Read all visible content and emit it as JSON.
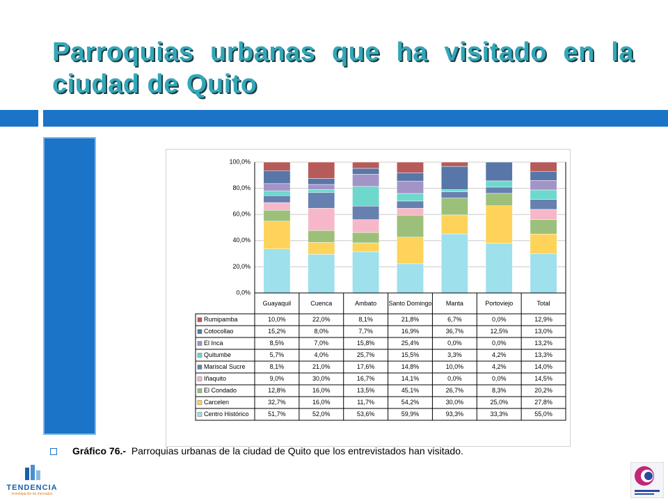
{
  "title": "Parroquias urbanas que ha visitado en la ciudad de Quito",
  "chart_data": {
    "type": "stacked_bar_100",
    "categories": [
      "Guayaquil",
      "Cuenca",
      "Ambato",
      "Santo Domingo",
      "Manta",
      "Portoviejo",
      "Total"
    ],
    "ylim": [
      0,
      100
    ],
    "yticks": [
      {
        "value": 0,
        "label": "0,0%"
      },
      {
        "value": 20,
        "label": "20,0%"
      },
      {
        "value": 40,
        "label": "40,0%"
      },
      {
        "value": 60,
        "label": "60,0%"
      },
      {
        "value": 80,
        "label": "80,0%"
      },
      {
        "value": 100,
        "label": "100,0%"
      }
    ],
    "grid": true,
    "series": [
      {
        "name": "Rumipamba",
        "color": "#b75a5a",
        "values": [
          10.0,
          22.0,
          8.1,
          21.8,
          6.7,
          0.0,
          12.9
        ],
        "value_labels": [
          "10,0%",
          "22,0%",
          "8,1%",
          "21,8%",
          "6,7%",
          "0,0%",
          "12,9%"
        ]
      },
      {
        "name": "Cotocollao",
        "color": "#5876a8",
        "values": [
          15.2,
          8.0,
          7.7,
          16.9,
          36.7,
          12.5,
          13.0
        ],
        "value_labels": [
          "15,2%",
          "8,0%",
          "7,7%",
          "16,9%",
          "36,7%",
          "12,5%",
          "13,0%"
        ]
      },
      {
        "name": "El Inca",
        "color": "#a394c8",
        "values": [
          8.5,
          7.0,
          15.8,
          25.4,
          0.0,
          0.0,
          13.2
        ],
        "value_labels": [
          "8,5%",
          "7,0%",
          "15,8%",
          "25,4%",
          "0,0%",
          "0,0%",
          "13,2%"
        ]
      },
      {
        "name": "Quitumbe",
        "color": "#6ed8cc",
        "values": [
          5.7,
          4.0,
          25.7,
          15.5,
          3.3,
          4.2,
          13.3
        ],
        "value_labels": [
          "5,7%",
          "4,0%",
          "25,7%",
          "15,5%",
          "3,3%",
          "4,2%",
          "13,3%"
        ]
      },
      {
        "name": "Mariscal Sucre",
        "color": "#6680b0",
        "values": [
          8.1,
          21.0,
          17.6,
          14.8,
          10.0,
          4.2,
          14.0
        ],
        "value_labels": [
          "8,1%",
          "21,0%",
          "17,6%",
          "14,8%",
          "10,0%",
          "4,2%",
          "14,0%"
        ]
      },
      {
        "name": "Iñaquito",
        "color": "#f6b8c8",
        "values": [
          9.0,
          30.0,
          16.7,
          14.1,
          0.0,
          0.0,
          14.5
        ],
        "value_labels": [
          "9,0%",
          "30,0%",
          "16,7%",
          "14,1%",
          "0,0%",
          "0,0%",
          "14,5%"
        ]
      },
      {
        "name": "El Condado",
        "color": "#9cc07a",
        "values": [
          12.8,
          16.0,
          13.5,
          45.1,
          26.7,
          8.3,
          20.2
        ],
        "value_labels": [
          "12,8%",
          "16,0%",
          "13,5%",
          "45,1%",
          "26,7%",
          "8,3%",
          "20,2%"
        ]
      },
      {
        "name": "Carcelen",
        "color": "#fdd35a",
        "values": [
          32.7,
          16.0,
          11.7,
          54.2,
          30.0,
          25.0,
          27.8
        ],
        "value_labels": [
          "32,7%",
          "16,0%",
          "11,7%",
          "54,2%",
          "30,0%",
          "25,0%",
          "27,8%"
        ]
      },
      {
        "name": "Centro Histórico",
        "color": "#9ee0ec",
        "values": [
          51.7,
          52.0,
          53.6,
          59.9,
          93.3,
          33.3,
          55.0
        ],
        "value_labels": [
          "51,7%",
          "52,0%",
          "53,6%",
          "59,9%",
          "93,3%",
          "33,3%",
          "55,0%"
        ]
      }
    ]
  },
  "caption": {
    "label": "Gráfico 76.-",
    "text": "Parroquias urbanas de la ciudad de Quito que los entrevistados han visitado."
  },
  "logo_left": {
    "name": "TENDENCIA",
    "tagline": "investigación de mercados"
  }
}
